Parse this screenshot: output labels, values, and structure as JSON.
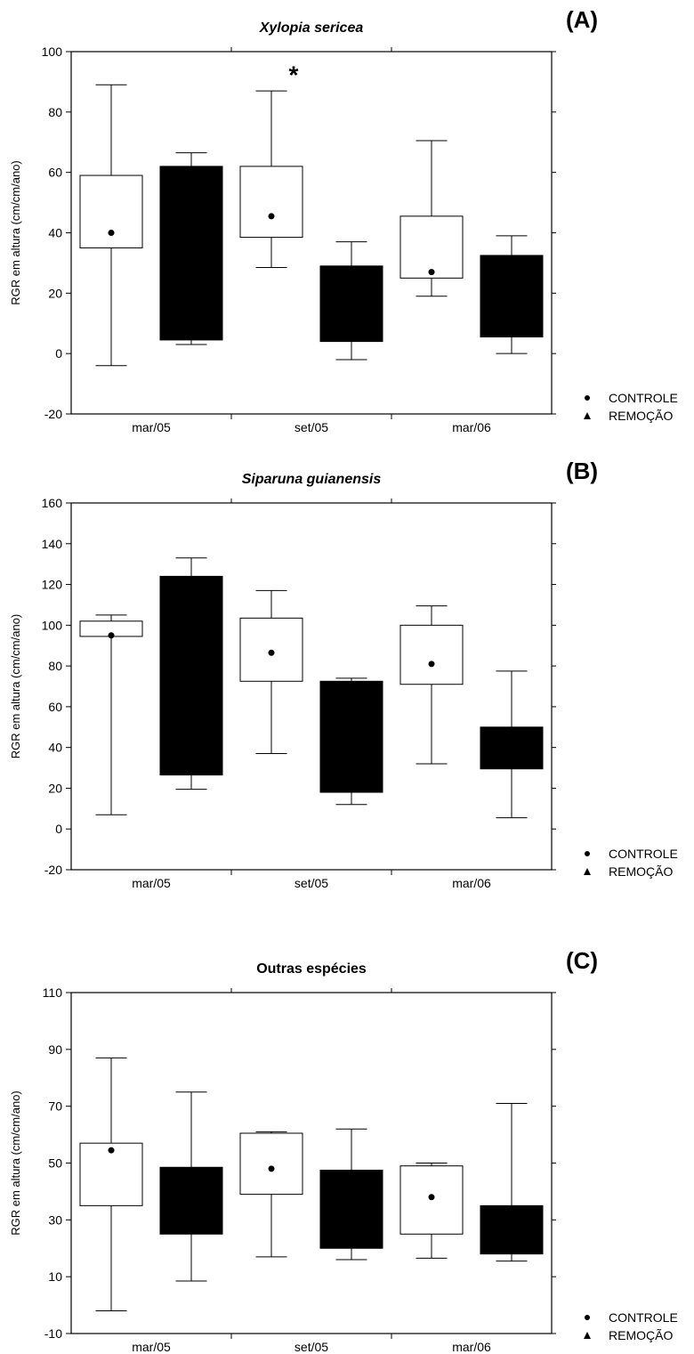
{
  "chart_data": [
    {
      "type": "box",
      "panel_label": "(A)",
      "title": "Xylopia sericea",
      "title_style": "italic",
      "ylabel": "RGR em altura (cm/cm/ano)",
      "ylim": [
        -20,
        100
      ],
      "yticks": [
        -20,
        0,
        20,
        40,
        60,
        80,
        100
      ],
      "categories": [
        "mar/05",
        "set/05",
        "mar/06"
      ],
      "series": [
        {
          "name": "CONTROLE",
          "color": "#ffffff",
          "boxes": [
            {
              "min": -4,
              "q1": 35,
              "q3": 59,
              "max": 89,
              "median": 40
            },
            {
              "min": 28.5,
              "q1": 38.5,
              "q3": 62,
              "max": 87,
              "median": 45.5
            },
            {
              "min": 19,
              "q1": 25,
              "q3": 45.5,
              "max": 70.5,
              "median": 27
            }
          ]
        },
        {
          "name": "REMOÇÃO",
          "color": "#000000",
          "boxes": [
            {
              "min": 3,
              "q1": 4.5,
              "q3": 62,
              "max": 66.5,
              "median": null
            },
            {
              "min": -2,
              "q1": 4,
              "q3": 29,
              "max": 37,
              "median": null
            },
            {
              "min": 0,
              "q1": 5.5,
              "q3": 32.5,
              "max": 39,
              "median": null
            }
          ]
        }
      ],
      "annotations": [
        {
          "text": "*",
          "category": "set/05",
          "y": 93
        }
      ],
      "legend": [
        {
          "label": "CONTROLE",
          "marker": "circle"
        },
        {
          "label": "REMOÇÃO",
          "marker": "triangle"
        }
      ],
      "legend_position": "bottom-right"
    },
    {
      "type": "box",
      "panel_label": "(B)",
      "title": "Siparuna guianensis",
      "title_style": "italic",
      "ylabel": "RGR em altura (cm/cm/ano)",
      "ylim": [
        -20,
        160
      ],
      "yticks": [
        -20,
        0,
        20,
        40,
        60,
        80,
        100,
        120,
        140,
        160
      ],
      "categories": [
        "mar/05",
        "set/05",
        "mar/06"
      ],
      "series": [
        {
          "name": "CONTROLE",
          "color": "#ffffff",
          "boxes": [
            {
              "min": 7,
              "q1": 94.5,
              "q3": 102,
              "max": 105,
              "median": 95
            },
            {
              "min": 37,
              "q1": 72.5,
              "q3": 103.5,
              "max": 117,
              "median": 86.5
            },
            {
              "min": 32,
              "q1": 71,
              "q3": 100,
              "max": 109.5,
              "median": 81
            }
          ]
        },
        {
          "name": "REMOÇÃO",
          "color": "#000000",
          "boxes": [
            {
              "min": 19.5,
              "q1": 26.5,
              "q3": 124,
              "max": 133,
              "median": null
            },
            {
              "min": 12,
              "q1": 18,
              "q3": 72.5,
              "max": 74,
              "median": null
            },
            {
              "min": 5.5,
              "q1": 29.5,
              "q3": 50,
              "max": 77.5,
              "median": null
            }
          ]
        }
      ],
      "annotations": [],
      "legend": [
        {
          "label": "CONTROLE",
          "marker": "circle"
        },
        {
          "label": "REMOÇÃO",
          "marker": "triangle"
        }
      ],
      "legend_position": "bottom-right"
    },
    {
      "type": "box",
      "panel_label": "(C)",
      "title": "Outras espécies",
      "title_style": "normal",
      "ylabel": "RGR em altura (cm/cm/ano)",
      "ylim": [
        -10,
        110
      ],
      "yticks": [
        -10,
        10,
        30,
        50,
        70,
        90,
        110
      ],
      "categories": [
        "mar/05",
        "set/05",
        "mar/06"
      ],
      "series": [
        {
          "name": "CONTROLE",
          "color": "#ffffff",
          "boxes": [
            {
              "min": -2,
              "q1": 35,
              "q3": 57,
              "max": 87,
              "median": 54.5
            },
            {
              "min": 17,
              "q1": 39,
              "q3": 60.5,
              "max": 61,
              "median": 48
            },
            {
              "min": 16.5,
              "q1": 25,
              "q3": 49,
              "max": 50,
              "median": 38
            }
          ]
        },
        {
          "name": "REMOÇÃO",
          "color": "#000000",
          "boxes": [
            {
              "min": 8.5,
              "q1": 25,
              "q3": 48.5,
              "max": 75,
              "median": null
            },
            {
              "min": 16,
              "q1": 20,
              "q3": 47.5,
              "max": 62,
              "median": null
            },
            {
              "min": 15.5,
              "q1": 18,
              "q3": 35,
              "max": 71,
              "median": null
            }
          ]
        }
      ],
      "annotations": [],
      "legend": [
        {
          "label": "CONTROLE",
          "marker": "circle"
        },
        {
          "label": "REMOÇÃO",
          "marker": "triangle"
        }
      ],
      "legend_position": "bottom-right"
    }
  ]
}
